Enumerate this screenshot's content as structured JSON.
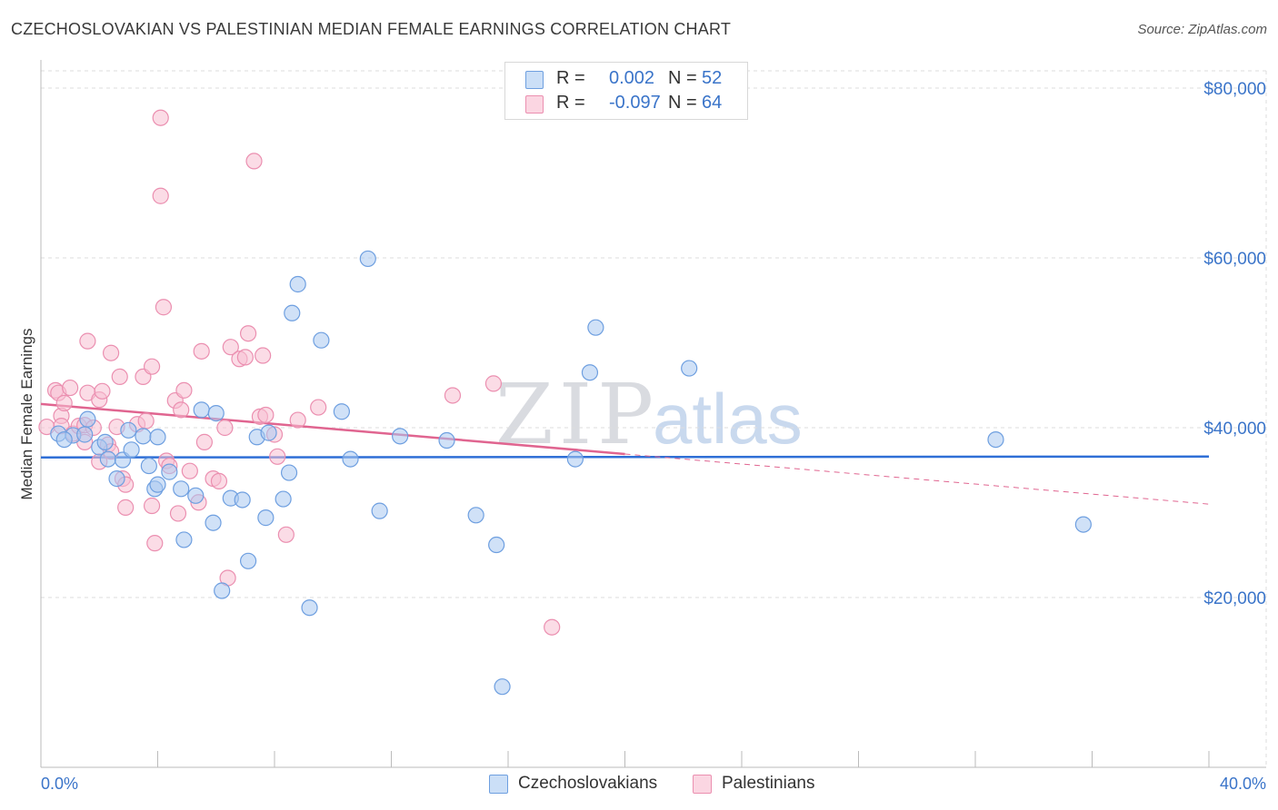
{
  "title": "CZECHOSLOVAKIAN VS PALESTINIAN MEDIAN FEMALE EARNINGS CORRELATION CHART",
  "source": "Source: ZipAtlas.com",
  "watermark": {
    "zip": "ZIP",
    "atlas": "atlas"
  },
  "legend_top": {
    "rows": [
      {
        "r_label": "R =",
        "r_value": "0.002",
        "n_label": "N =",
        "n_value": "52",
        "color": "#a9c8f0"
      },
      {
        "r_label": "R =",
        "r_value": "-0.097",
        "n_label": "N =",
        "n_value": "64",
        "color": "#f7bfd1"
      }
    ]
  },
  "legend_bottom": [
    {
      "label": "Czechoslovakians",
      "color": "#a9c8f0"
    },
    {
      "label": "Palestinians",
      "color": "#f7bfd1"
    }
  ],
  "chart_data": {
    "type": "scatter",
    "title": "CZECHOSLOVAKIAN VS PALESTINIAN MEDIAN FEMALE EARNINGS CORRELATION CHART",
    "xlabel": "",
    "ylabel": "Median Female Earnings",
    "xlim": [
      0,
      40
    ],
    "ylim": [
      0,
      82000
    ],
    "x_tick_labels": {
      "left": "0.0%",
      "right": "40.0%"
    },
    "y_ticks": [
      {
        "value": 20000,
        "label": "$20,000"
      },
      {
        "value": 40000,
        "label": "$40,000"
      },
      {
        "value": 60000,
        "label": "$60,000"
      },
      {
        "value": 80000,
        "label": "$80,000"
      }
    ],
    "grid": true,
    "colors": {
      "czech_fill": "#a9c8f0",
      "czech_stroke": "#6e9fe0",
      "czech_line": "#2f6fd6",
      "pal_fill": "#f7bfd1",
      "pal_stroke": "#eb8fb0",
      "pal_line": "#e06590",
      "axis_text": "#3a74c9",
      "grid": "#dddddd"
    },
    "series": [
      {
        "name": "Czechoslovakians",
        "trend": {
          "x0": 0,
          "y0": 36500,
          "x1": 40,
          "y1": 36600,
          "solid_to": 40
        },
        "points": [
          [
            0.6,
            39300
          ],
          [
            1.1,
            39100
          ],
          [
            1.6,
            41000
          ],
          [
            2.0,
            37700
          ],
          [
            2.2,
            38300
          ],
          [
            2.3,
            36300
          ],
          [
            2.6,
            34000
          ],
          [
            2.8,
            36200
          ],
          [
            3.0,
            39700
          ],
          [
            3.1,
            37400
          ],
          [
            3.5,
            39000
          ],
          [
            3.7,
            35500
          ],
          [
            3.9,
            32800
          ],
          [
            4.0,
            33300
          ],
          [
            4.4,
            34800
          ],
          [
            4.8,
            32800
          ],
          [
            4.9,
            26800
          ],
          [
            5.3,
            32000
          ],
          [
            5.5,
            42100
          ],
          [
            5.9,
            28800
          ],
          [
            6.0,
            41700
          ],
          [
            6.2,
            20800
          ],
          [
            6.5,
            31700
          ],
          [
            6.9,
            31500
          ],
          [
            7.1,
            24300
          ],
          [
            7.4,
            38900
          ],
          [
            7.7,
            29400
          ],
          [
            7.8,
            39400
          ],
          [
            8.3,
            31600
          ],
          [
            8.5,
            34700
          ],
          [
            8.6,
            53500
          ],
          [
            8.8,
            56900
          ],
          [
            9.2,
            18800
          ],
          [
            9.6,
            50300
          ],
          [
            10.3,
            41900
          ],
          [
            10.6,
            36300
          ],
          [
            11.2,
            59900
          ],
          [
            11.6,
            30200
          ],
          [
            12.3,
            39000
          ],
          [
            13.9,
            38500
          ],
          [
            14.9,
            29700
          ],
          [
            15.6,
            26200
          ],
          [
            15.8,
            9500
          ],
          [
            18.3,
            36300
          ],
          [
            18.8,
            46500
          ],
          [
            19.0,
            51800
          ],
          [
            22.2,
            47000
          ],
          [
            32.7,
            38600
          ],
          [
            35.7,
            28600
          ],
          [
            0.8,
            38600
          ],
          [
            1.5,
            39200
          ],
          [
            4.0,
            38900
          ]
        ]
      },
      {
        "name": "Palestinians",
        "trend": {
          "x0": 0,
          "y0": 42800,
          "x1": 40,
          "y1": 31000,
          "solid_to": 20
        },
        "points": [
          [
            0.2,
            40100
          ],
          [
            0.5,
            44400
          ],
          [
            0.6,
            44100
          ],
          [
            0.7,
            41400
          ],
          [
            0.7,
            40200
          ],
          [
            0.8,
            42900
          ],
          [
            1.0,
            44700
          ],
          [
            1.1,
            39300
          ],
          [
            1.3,
            40200
          ],
          [
            1.5,
            38300
          ],
          [
            1.5,
            40300
          ],
          [
            1.6,
            44100
          ],
          [
            1.6,
            50200
          ],
          [
            1.8,
            40000
          ],
          [
            2.0,
            36000
          ],
          [
            2.0,
            43300
          ],
          [
            2.1,
            44300
          ],
          [
            2.3,
            38000
          ],
          [
            2.4,
            48800
          ],
          [
            2.4,
            37200
          ],
          [
            2.6,
            40100
          ],
          [
            2.7,
            46000
          ],
          [
            2.8,
            34000
          ],
          [
            2.9,
            33300
          ],
          [
            2.9,
            30600
          ],
          [
            3.3,
            40400
          ],
          [
            3.5,
            46000
          ],
          [
            3.6,
            40800
          ],
          [
            3.8,
            47200
          ],
          [
            3.8,
            30800
          ],
          [
            3.9,
            26400
          ],
          [
            4.2,
            54200
          ],
          [
            4.3,
            36100
          ],
          [
            4.4,
            35500
          ],
          [
            4.6,
            43200
          ],
          [
            4.7,
            29900
          ],
          [
            4.8,
            42100
          ],
          [
            4.9,
            44400
          ],
          [
            5.1,
            34900
          ],
          [
            5.4,
            31200
          ],
          [
            5.5,
            49000
          ],
          [
            5.6,
            38300
          ],
          [
            5.9,
            34000
          ],
          [
            6.1,
            33700
          ],
          [
            6.3,
            40000
          ],
          [
            6.4,
            22300
          ],
          [
            6.5,
            49500
          ],
          [
            6.8,
            48100
          ],
          [
            7.0,
            48300
          ],
          [
            7.1,
            51100
          ],
          [
            7.3,
            71400
          ],
          [
            7.5,
            41300
          ],
          [
            7.6,
            48500
          ],
          [
            7.7,
            41500
          ],
          [
            8.0,
            39200
          ],
          [
            8.1,
            36600
          ],
          [
            8.4,
            27400
          ],
          [
            8.8,
            40900
          ],
          [
            9.5,
            42400
          ],
          [
            14.1,
            43800
          ],
          [
            15.5,
            45200
          ],
          [
            17.5,
            16500
          ],
          [
            4.1,
            76500
          ],
          [
            4.1,
            67300
          ]
        ]
      }
    ]
  }
}
